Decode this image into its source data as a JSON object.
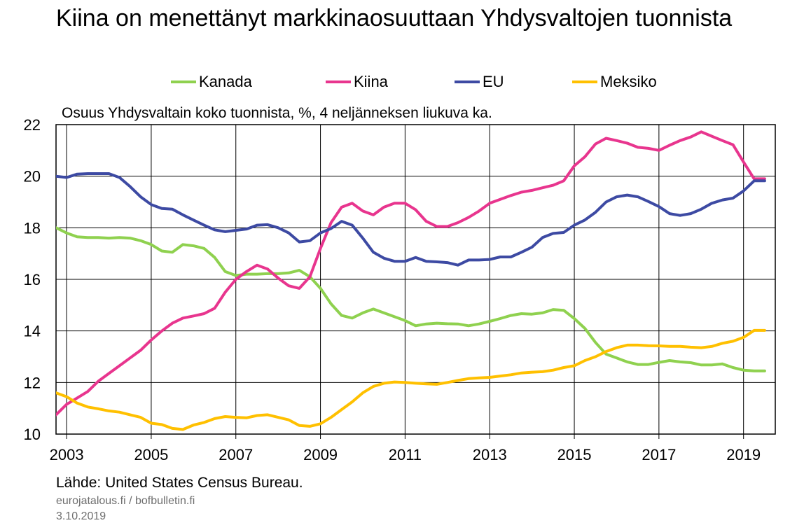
{
  "title": "Kiina on menettänyt markkinaosuuttaan Yhdysvaltojen tuonnista",
  "source": "Lähde: United States Census Bureau.",
  "credit_site": "eurojatalous.fi / bofbulletin.fi",
  "credit_date": "3.10.2019",
  "chart_data": {
    "type": "line",
    "subtitle": "Osuus Yhdysvaltain koko tuonnista, %, 4 neljänneksen liukuva ka.",
    "ylim": [
      10,
      22
    ],
    "yticks": [
      10,
      12,
      14,
      16,
      18,
      20,
      22
    ],
    "xlim": [
      2002.75,
      2019.75
    ],
    "xticks": [
      "2003",
      "2005",
      "2007",
      "2009",
      "2011",
      "2013",
      "2015",
      "2017",
      "2019"
    ],
    "grid": true,
    "legend_position": "top",
    "series": [
      {
        "name": "Kanada",
        "color": "#8fd14f",
        "x": [
          2002.75,
          2003.0,
          2003.25,
          2003.5,
          2003.75,
          2004.0,
          2004.25,
          2004.5,
          2004.75,
          2005.0,
          2005.25,
          2005.5,
          2005.75,
          2006.0,
          2006.25,
          2006.5,
          2006.75,
          2007.0,
          2007.25,
          2007.5,
          2007.75,
          2008.0,
          2008.25,
          2008.5,
          2008.75,
          2009.0,
          2009.25,
          2009.5,
          2009.75,
          2010.0,
          2010.25,
          2010.5,
          2010.75,
          2011.0,
          2011.25,
          2011.5,
          2011.75,
          2012.0,
          2012.25,
          2012.5,
          2012.75,
          2013.0,
          2013.25,
          2013.5,
          2013.75,
          2014.0,
          2014.25,
          2014.5,
          2014.75,
          2015.0,
          2015.25,
          2015.5,
          2015.75,
          2016.0,
          2016.25,
          2016.5,
          2016.75,
          2017.0,
          2017.25,
          2017.5,
          2017.75,
          2018.0,
          2018.25,
          2018.5,
          2018.75,
          2019.0,
          2019.25,
          2019.5
        ],
        "values": [
          18.0,
          17.8,
          17.65,
          17.62,
          17.62,
          17.6,
          17.62,
          17.6,
          17.5,
          17.35,
          17.1,
          17.05,
          17.35,
          17.3,
          17.2,
          16.85,
          16.3,
          16.15,
          16.2,
          16.2,
          16.22,
          16.22,
          16.25,
          16.35,
          16.1,
          15.65,
          15.05,
          14.6,
          14.5,
          14.7,
          14.85,
          14.7,
          14.55,
          14.4,
          14.2,
          14.27,
          14.3,
          14.28,
          14.27,
          14.2,
          14.27,
          14.37,
          14.48,
          14.6,
          14.67,
          14.65,
          14.7,
          14.83,
          14.8,
          14.48,
          14.1,
          13.55,
          13.1,
          12.95,
          12.8,
          12.7,
          12.7,
          12.78,
          12.85,
          12.8,
          12.77,
          12.68,
          12.68,
          12.72,
          12.58,
          12.48,
          12.45,
          12.45
        ]
      },
      {
        "name": "Kiina",
        "color": "#e8358e",
        "x": [
          2002.75,
          2003.0,
          2003.25,
          2003.5,
          2003.75,
          2004.0,
          2004.25,
          2004.5,
          2004.75,
          2005.0,
          2005.25,
          2005.5,
          2005.75,
          2006.0,
          2006.25,
          2006.5,
          2006.75,
          2007.0,
          2007.25,
          2007.5,
          2007.75,
          2008.0,
          2008.25,
          2008.5,
          2008.75,
          2009.0,
          2009.25,
          2009.5,
          2009.75,
          2010.0,
          2010.25,
          2010.5,
          2010.75,
          2011.0,
          2011.25,
          2011.5,
          2011.75,
          2012.0,
          2012.25,
          2012.5,
          2012.75,
          2013.0,
          2013.25,
          2013.5,
          2013.75,
          2014.0,
          2014.25,
          2014.5,
          2014.75,
          2015.0,
          2015.25,
          2015.5,
          2015.75,
          2016.0,
          2016.25,
          2016.5,
          2016.75,
          2017.0,
          2017.25,
          2017.5,
          2017.75,
          2018.0,
          2018.25,
          2018.5,
          2018.75,
          2019.0,
          2019.25,
          2019.5
        ],
        "values": [
          10.75,
          11.15,
          11.4,
          11.65,
          12.05,
          12.35,
          12.65,
          12.95,
          13.25,
          13.65,
          14.0,
          14.3,
          14.5,
          14.58,
          14.67,
          14.88,
          15.5,
          16.0,
          16.3,
          16.55,
          16.4,
          16.05,
          15.75,
          15.65,
          16.1,
          17.2,
          18.2,
          18.8,
          18.95,
          18.65,
          18.5,
          18.8,
          18.95,
          18.95,
          18.7,
          18.25,
          18.05,
          18.05,
          18.2,
          18.4,
          18.65,
          18.95,
          19.1,
          19.25,
          19.38,
          19.45,
          19.55,
          19.65,
          19.82,
          20.4,
          20.75,
          21.25,
          21.47,
          21.38,
          21.28,
          21.12,
          21.08,
          21.0,
          21.2,
          21.38,
          21.52,
          21.72,
          21.55,
          21.38,
          21.22,
          20.55,
          19.9,
          19.9
        ]
      },
      {
        "name": "EU",
        "color": "#3d4aa3",
        "x": [
          2002.75,
          2003.0,
          2003.25,
          2003.5,
          2003.75,
          2004.0,
          2004.25,
          2004.5,
          2004.75,
          2005.0,
          2005.25,
          2005.5,
          2005.75,
          2006.0,
          2006.25,
          2006.5,
          2006.75,
          2007.0,
          2007.25,
          2007.5,
          2007.75,
          2008.0,
          2008.25,
          2008.5,
          2008.75,
          2009.0,
          2009.25,
          2009.5,
          2009.75,
          2010.0,
          2010.25,
          2010.5,
          2010.75,
          2011.0,
          2011.25,
          2011.5,
          2011.75,
          2012.0,
          2012.25,
          2012.5,
          2012.75,
          2013.0,
          2013.25,
          2013.5,
          2013.75,
          2014.0,
          2014.25,
          2014.5,
          2014.75,
          2015.0,
          2015.25,
          2015.5,
          2015.75,
          2016.0,
          2016.25,
          2016.5,
          2016.75,
          2017.0,
          2017.25,
          2017.5,
          2017.75,
          2018.0,
          2018.25,
          2018.5,
          2018.75,
          2019.0,
          2019.25,
          2019.5
        ],
        "values": [
          20.0,
          19.95,
          20.08,
          20.1,
          20.1,
          20.1,
          19.95,
          19.6,
          19.2,
          18.9,
          18.75,
          18.72,
          18.5,
          18.3,
          18.1,
          17.92,
          17.85,
          17.9,
          17.95,
          18.1,
          18.12,
          18.0,
          17.8,
          17.45,
          17.5,
          17.8,
          17.97,
          18.25,
          18.1,
          17.6,
          17.05,
          16.82,
          16.7,
          16.7,
          16.85,
          16.7,
          16.68,
          16.65,
          16.55,
          16.75,
          16.75,
          16.77,
          16.87,
          16.87,
          17.05,
          17.25,
          17.62,
          17.78,
          17.82,
          18.1,
          18.3,
          18.6,
          19.0,
          19.2,
          19.27,
          19.2,
          19.02,
          18.82,
          18.55,
          18.48,
          18.55,
          18.72,
          18.95,
          19.08,
          19.15,
          19.43,
          19.82,
          19.82
        ]
      },
      {
        "name": "Meksiko",
        "color": "#ffc000",
        "x": [
          2002.75,
          2003.0,
          2003.25,
          2003.5,
          2003.75,
          2004.0,
          2004.25,
          2004.5,
          2004.75,
          2005.0,
          2005.25,
          2005.5,
          2005.75,
          2006.0,
          2006.25,
          2006.5,
          2006.75,
          2007.0,
          2007.25,
          2007.5,
          2007.75,
          2008.0,
          2008.25,
          2008.5,
          2008.75,
          2009.0,
          2009.25,
          2009.5,
          2009.75,
          2010.0,
          2010.25,
          2010.5,
          2010.75,
          2011.0,
          2011.25,
          2011.5,
          2011.75,
          2012.0,
          2012.25,
          2012.5,
          2012.75,
          2013.0,
          2013.25,
          2013.5,
          2013.75,
          2014.0,
          2014.25,
          2014.5,
          2014.75,
          2015.0,
          2015.25,
          2015.5,
          2015.75,
          2016.0,
          2016.25,
          2016.5,
          2016.75,
          2017.0,
          2017.25,
          2017.5,
          2017.75,
          2018.0,
          2018.25,
          2018.5,
          2018.75,
          2019.0,
          2019.25,
          2019.5
        ],
        "values": [
          11.6,
          11.45,
          11.2,
          11.05,
          10.98,
          10.9,
          10.85,
          10.75,
          10.65,
          10.42,
          10.37,
          10.22,
          10.18,
          10.35,
          10.45,
          10.6,
          10.68,
          10.65,
          10.63,
          10.72,
          10.75,
          10.65,
          10.55,
          10.33,
          10.3,
          10.4,
          10.65,
          10.95,
          11.25,
          11.6,
          11.85,
          11.97,
          12.02,
          12.0,
          11.97,
          11.95,
          11.93,
          12.0,
          12.08,
          12.15,
          12.18,
          12.2,
          12.25,
          12.3,
          12.37,
          12.4,
          12.42,
          12.48,
          12.58,
          12.65,
          12.85,
          13.0,
          13.2,
          13.35,
          13.45,
          13.45,
          13.43,
          13.42,
          13.4,
          13.4,
          13.37,
          13.35,
          13.4,
          13.52,
          13.6,
          13.75,
          14.02,
          14.02
        ]
      }
    ]
  }
}
